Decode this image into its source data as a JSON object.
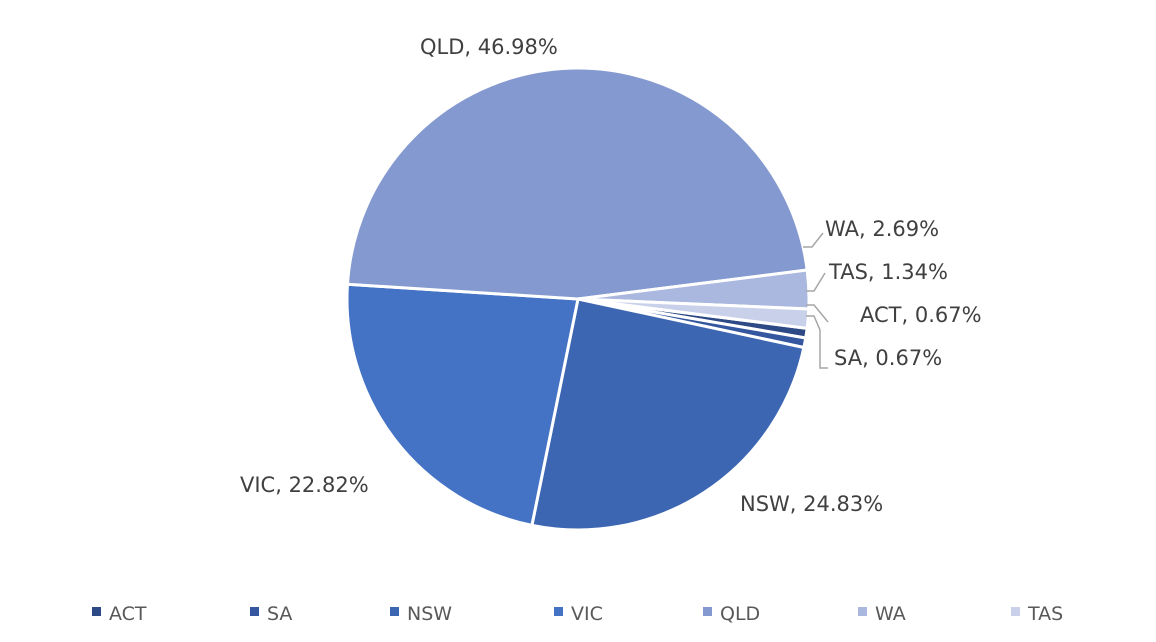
{
  "chart_data": {
    "type": "pie",
    "title": "",
    "slices": [
      {
        "label": "ACT",
        "value": 0.67,
        "color": "#2e4a86",
        "data_label": "ACT, 0.67%"
      },
      {
        "label": "SA",
        "value": 0.67,
        "color": "#3457a0",
        "data_label": "SA, 0.67%"
      },
      {
        "label": "NSW",
        "value": 24.83,
        "color": "#3c66b1",
        "data_label": "NSW, 24.83%"
      },
      {
        "label": "VIC",
        "value": 22.82,
        "color": "#4472c4",
        "data_label": "VIC, 22.82%"
      },
      {
        "label": "QLD",
        "value": 46.98,
        "color": "#8499cf",
        "data_label": "QLD, 46.98%"
      },
      {
        "label": "WA",
        "value": 2.69,
        "color": "#aab8df",
        "data_label": "WA, 2.69%"
      },
      {
        "label": "TAS",
        "value": 1.34,
        "color": "#c9d1ea",
        "data_label": "TAS, 1.34%"
      }
    ],
    "legend": {
      "position": "bottom",
      "entries": [
        "ACT",
        "SA",
        "NSW",
        "VIC",
        "QLD",
        "WA",
        "TAS"
      ]
    }
  }
}
